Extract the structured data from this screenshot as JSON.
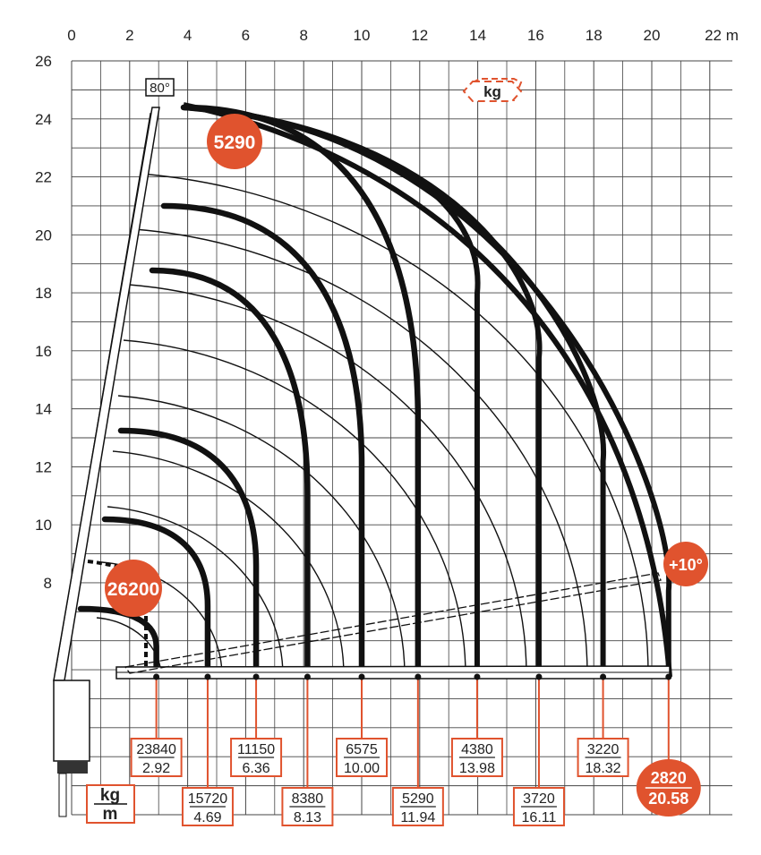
{
  "chart_data": {
    "type": "load-chart",
    "title": "",
    "x_unit": "22 m",
    "x_ticks": [
      "0",
      "2",
      "4",
      "6",
      "8",
      "10",
      "12",
      "14",
      "16",
      "18",
      "20"
    ],
    "y_ticks": [
      "26",
      "24",
      "22",
      "20",
      "18",
      "16",
      "14",
      "12",
      "10",
      "8"
    ],
    "xlim": [
      0,
      22
    ],
    "ylim": [
      0,
      26
    ],
    "boom_angle_label": "80°",
    "unit_badge": "kg",
    "legend_box": {
      "top": "kg",
      "bottom": "m"
    },
    "jib_angle_badge": "+10°",
    "max_lift_badges": [
      "5290",
      "26200"
    ],
    "load_points": [
      {
        "kg": "23840",
        "m": "2.92",
        "x": 2.92
      },
      {
        "kg": "15720",
        "m": "4.69",
        "x": 4.69
      },
      {
        "kg": "11150",
        "m": "6.36",
        "x": 6.36
      },
      {
        "kg": "8380",
        "m": "8.13",
        "x": 8.13
      },
      {
        "kg": "6575",
        "m": "10.00",
        "x": 10.0
      },
      {
        "kg": "5290",
        "m": "11.94",
        "x": 11.94
      },
      {
        "kg": "4380",
        "m": "13.98",
        "x": 13.98
      },
      {
        "kg": "3720",
        "m": "16.11",
        "x": 16.11
      },
      {
        "kg": "3220",
        "m": "18.32",
        "x": 18.32
      },
      {
        "kg": "2820",
        "m": "20.58",
        "x": 20.58
      }
    ],
    "colors": {
      "accent": "#e0532e",
      "grid": "#333333",
      "curve": "#111111"
    }
  }
}
